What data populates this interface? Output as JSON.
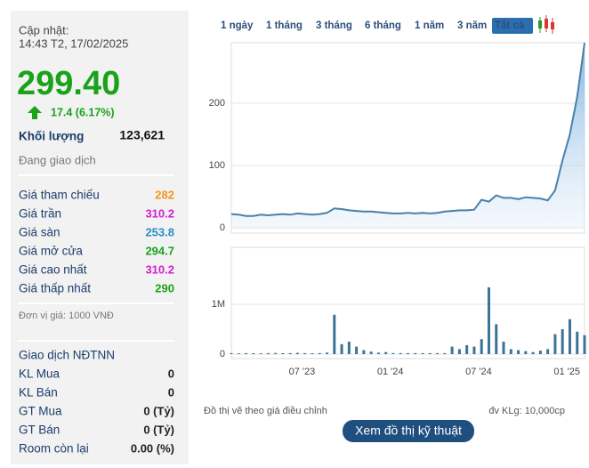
{
  "update": {
    "label": "Cập nhật:",
    "time": "14:43 T2, 17/02/2025"
  },
  "price": "299.40",
  "change": "17.4 (6.17%)",
  "volume": {
    "label": "Khối lượng",
    "value": "123,621"
  },
  "status": "Đang giao dịch",
  "prices": [
    {
      "label": "Giá tham chiếu",
      "value": "282",
      "color": "#f7931e"
    },
    {
      "label": "Giá trần",
      "value": "310.2",
      "color": "#d31fd3"
    },
    {
      "label": "Giá sàn",
      "value": "253.8",
      "color": "#2a8fc8"
    },
    {
      "label": "Giá mở cửa",
      "value": "294.7",
      "color": "#1aa21a"
    },
    {
      "label": "Giá cao nhất",
      "value": "310.2",
      "color": "#d31fd3"
    },
    {
      "label": "Giá thấp nhất",
      "value": "290",
      "color": "#1aa21a"
    }
  ],
  "unit": "Đơn vị giá: 1000 VNĐ",
  "foreign": {
    "title": "Giao dịch NĐTNN",
    "rows": [
      {
        "label": "KL Mua",
        "value": "0"
      },
      {
        "label": "KL Bán",
        "value": "0"
      },
      {
        "label": "GT Mua",
        "value": "0 (Tỷ)"
      },
      {
        "label": "GT Bán",
        "value": "0 (Tỷ)"
      },
      {
        "label": "Room còn lại",
        "value": "0.00 (%)"
      }
    ]
  },
  "tabs": [
    "1 ngày",
    "1 tháng",
    "3 tháng",
    "6 tháng",
    "1 năm",
    "3 năm",
    "Tất cả"
  ],
  "active_tab": 6,
  "chart_data": [
    {
      "type": "line",
      "series": [
        {
          "color": "#4a80a8",
          "values": [
            22,
            21,
            19,
            19,
            21,
            20,
            21,
            22,
            21,
            23,
            22,
            21,
            22,
            24,
            31,
            30,
            28,
            27,
            26,
            26,
            25,
            24,
            23,
            23,
            24,
            23,
            24,
            23,
            24,
            26,
            27,
            28,
            28,
            29,
            45,
            42,
            52,
            48,
            48,
            46,
            49,
            48,
            47,
            44,
            60,
            108,
            150,
            210,
            297
          ]
        }
      ],
      "ylim": [
        0,
        300
      ],
      "yticks": [
        0,
        100,
        200
      ],
      "grid": true
    },
    {
      "type": "bar",
      "color": "#3d7394",
      "categories": [
        null,
        null,
        null,
        null,
        null,
        null,
        null,
        null,
        null,
        "07 '23",
        null,
        null,
        null,
        null,
        null,
        null,
        null,
        null,
        null,
        null,
        null,
        "01 '24",
        null,
        null,
        null,
        null,
        null,
        null,
        null,
        null,
        null,
        null,
        null,
        "07 '24",
        null,
        null,
        null,
        null,
        null,
        null,
        null,
        null,
        null,
        null,
        null,
        "01 '25",
        null,
        null,
        null
      ],
      "values": [
        20000,
        15000,
        20000,
        18000,
        15000,
        20000,
        22000,
        18000,
        20000,
        25000,
        20000,
        18000,
        20000,
        30000,
        790000,
        200000,
        250000,
        150000,
        80000,
        50000,
        30000,
        40000,
        20000,
        20000,
        20000,
        20000,
        20000,
        20000,
        20000,
        20000,
        150000,
        100000,
        180000,
        150000,
        300000,
        1340000,
        600000,
        250000,
        100000,
        80000,
        60000,
        40000,
        70000,
        100000,
        400000,
        500000,
        700000,
        450000,
        380000
      ],
      "ylim": [
        0,
        2000000
      ],
      "yticks": [
        0,
        {
          "value": 1000000,
          "label": "1M"
        }
      ],
      "grid": true
    }
  ],
  "footnote_left": "Đồ thị vẽ theo giá điều chỉnh",
  "footnote_right": "đv KLg: 10,000cp",
  "button": "Xem đồ thị kỹ thuật"
}
